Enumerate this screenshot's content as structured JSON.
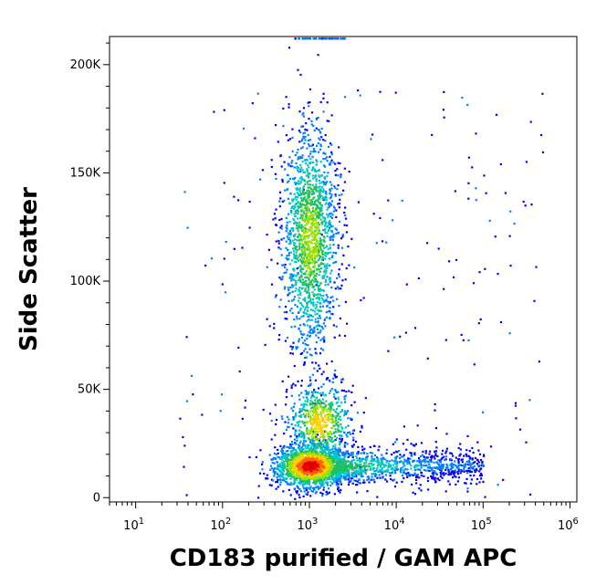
{
  "chart_data": {
    "type": "scatter",
    "style": "density-colored flow cytometry dot plot",
    "xlabel": "CD183 purified / GAM APC",
    "ylabel": "Side Scatter",
    "x_scale": "log",
    "xlim": [
      5,
      1200000
    ],
    "x_ticks": [
      {
        "value": 10,
        "base": "10",
        "exp": "1"
      },
      {
        "value": 100,
        "base": "10",
        "exp": "2"
      },
      {
        "value": 1000,
        "base": "10",
        "exp": "3"
      },
      {
        "value": 10000,
        "base": "10",
        "exp": "4"
      },
      {
        "value": 100000,
        "base": "10",
        "exp": "5"
      },
      {
        "value": 1000000,
        "base": "10",
        "exp": "6"
      }
    ],
    "y_scale": "linear",
    "ylim": [
      -2000,
      213000
    ],
    "y_ticks": [
      {
        "value": 0,
        "label": "0"
      },
      {
        "value": 50000,
        "label": "50K"
      },
      {
        "value": 100000,
        "label": "100K"
      },
      {
        "value": 150000,
        "label": "150K"
      },
      {
        "value": 200000,
        "label": "200K"
      }
    ],
    "density_colors": [
      "#0000ff",
      "#0080ff",
      "#00c8c8",
      "#20c060",
      "#a0e000",
      "#ffd000",
      "#ff6000",
      "#e00000"
    ],
    "populations": [
      {
        "x_center": 1000,
        "y_center": 15000,
        "x_spread_decades": 0.2,
        "y_spread": 5000,
        "count": 1700,
        "peak_level": 7
      },
      {
        "x_center": 1300,
        "y_center": 35000,
        "x_spread_decades": 0.18,
        "y_spread": 9000,
        "count": 600,
        "peak_level": 5
      },
      {
        "x_center": 1000,
        "y_center": 120000,
        "x_spread_decades": 0.16,
        "y_spread": 26000,
        "count": 1600,
        "peak_level": 4
      },
      {
        "x_min": 2000,
        "x_max": 100000,
        "y_center": 15000,
        "y_spread": 4000,
        "count": 900,
        "peak_level": 3
      }
    ]
  }
}
